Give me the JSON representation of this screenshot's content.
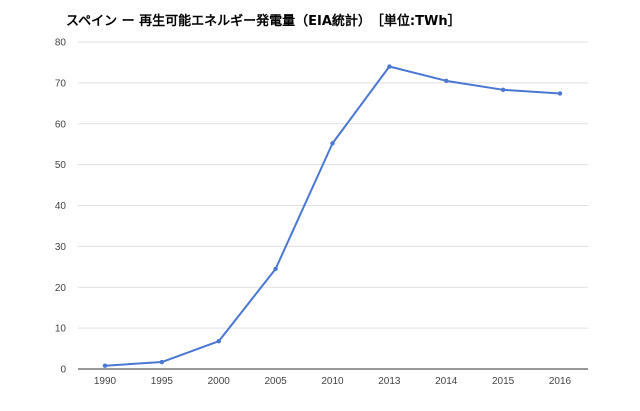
{
  "chart_data": {
    "type": "line",
    "title": "スペイン ー 再生可能エネルギー発電量（EIA統計）　［単位:TWh］",
    "xlabel": "",
    "ylabel": "",
    "categories": [
      "1990",
      "1995",
      "2000",
      "2005",
      "2010",
      "2013",
      "2014",
      "2015",
      "2016"
    ],
    "series": [
      {
        "values": [
          0.8,
          1.7,
          6.8,
          24.5,
          55.2,
          74.0,
          70.5,
          68.3,
          67.4
        ]
      }
    ],
    "ylim": [
      0,
      80
    ],
    "yticks": [
      "0",
      "10",
      "20",
      "30",
      "40",
      "50",
      "60",
      "70",
      "80"
    ],
    "grid": true,
    "legend": "none",
    "colors": {
      "line": "#4a77d4",
      "grid": "#e0e0e0",
      "axis": "#333333"
    }
  }
}
